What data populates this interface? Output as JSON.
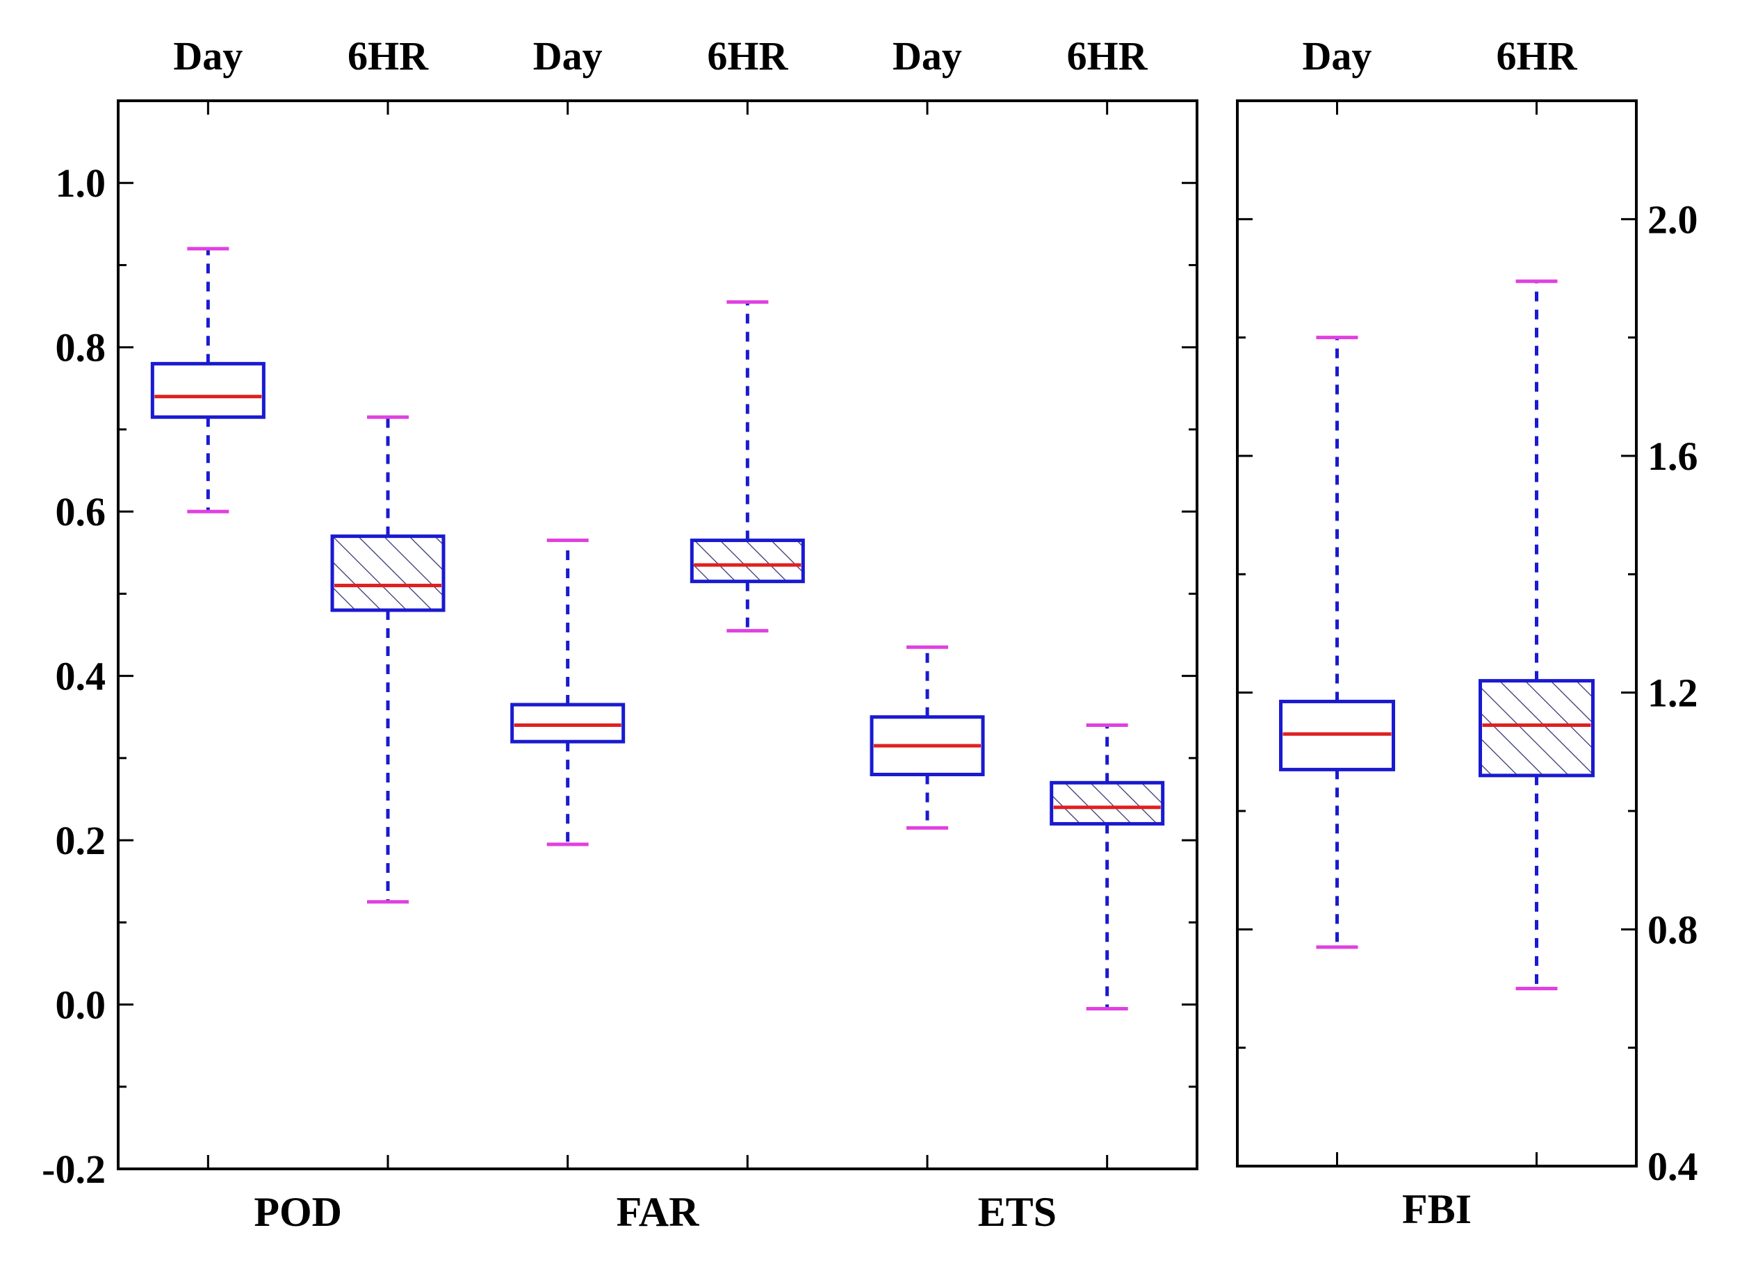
{
  "chart_data": [
    {
      "type": "box",
      "panel": "left",
      "ylim": [
        -0.2,
        1.1
      ],
      "yticks": [
        "-0.2",
        "0.0",
        "0.2",
        "0.4",
        "0.6",
        "0.8",
        "1.0"
      ],
      "groups": [
        {
          "label": "POD",
          "categories": [
            "Day",
            "6HR"
          ]
        },
        {
          "label": "FAR",
          "categories": [
            "Day",
            "6HR"
          ]
        },
        {
          "label": "ETS",
          "categories": [
            "Day",
            "6HR"
          ]
        }
      ],
      "boxes": [
        {
          "group": "POD",
          "category": "Day",
          "min": 0.6,
          "q1": 0.715,
          "median": 0.74,
          "q3": 0.78,
          "max": 0.92,
          "hatched": false
        },
        {
          "group": "POD",
          "category": "6HR",
          "min": 0.125,
          "q1": 0.48,
          "median": 0.51,
          "q3": 0.57,
          "max": 0.715,
          "hatched": true
        },
        {
          "group": "FAR",
          "category": "Day",
          "min": 0.195,
          "q1": 0.32,
          "median": 0.34,
          "q3": 0.365,
          "max": 0.565,
          "hatched": false
        },
        {
          "group": "FAR",
          "category": "6HR",
          "min": 0.455,
          "q1": 0.515,
          "median": 0.535,
          "q3": 0.565,
          "max": 0.855,
          "hatched": true
        },
        {
          "group": "ETS",
          "category": "Day",
          "min": 0.215,
          "q1": 0.28,
          "median": 0.315,
          "q3": 0.35,
          "max": 0.435,
          "hatched": false
        },
        {
          "group": "ETS",
          "category": "6HR",
          "min": -0.005,
          "q1": 0.22,
          "median": 0.24,
          "q3": 0.27,
          "max": 0.34,
          "hatched": true
        }
      ]
    },
    {
      "type": "box",
      "panel": "right",
      "ylim": [
        0.4,
        2.2
      ],
      "yticks": [
        "0.4",
        "0.8",
        "1.2",
        "1.6",
        "2.0"
      ],
      "groups": [
        {
          "label": "FBI",
          "categories": [
            "Day",
            "6HR"
          ]
        }
      ],
      "boxes": [
        {
          "group": "FBI",
          "category": "Day",
          "min": 0.77,
          "q1": 1.07,
          "median": 1.13,
          "q3": 1.185,
          "max": 1.8,
          "hatched": false
        },
        {
          "group": "FBI",
          "category": "6HR",
          "min": 0.7,
          "q1": 1.06,
          "median": 1.145,
          "q3": 1.22,
          "max": 1.895,
          "hatched": true
        }
      ]
    }
  ],
  "colors": {
    "box": "#1a1ad0",
    "median": "#e02020",
    "cap": "#e040e0",
    "whisker": "#1a1ad0",
    "hatch": "#303070",
    "axis": "#000000"
  }
}
